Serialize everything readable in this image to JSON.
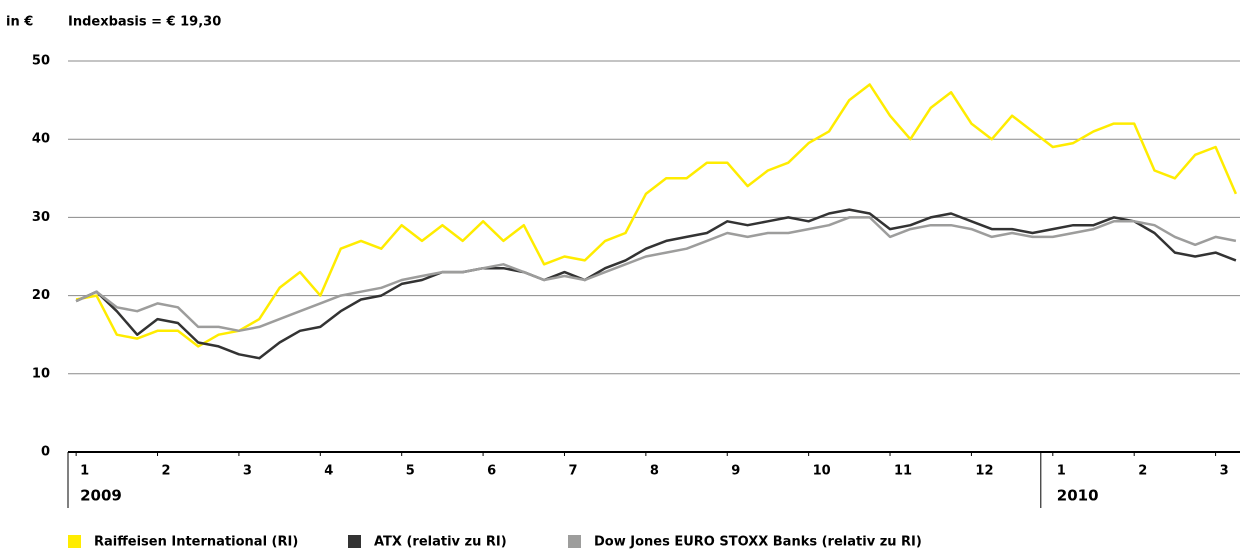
{
  "chart_data": {
    "type": "line",
    "unit_label": "in €",
    "subtitle": "Indexbasis = € 19,30",
    "x": [
      0,
      0.25,
      0.5,
      0.75,
      1,
      1.25,
      1.5,
      1.75,
      2,
      2.25,
      2.5,
      2.75,
      3,
      3.25,
      3.5,
      3.75,
      4,
      4.25,
      4.5,
      4.75,
      5,
      5.25,
      5.5,
      5.75,
      6,
      6.25,
      6.5,
      6.75,
      7,
      7.25,
      7.5,
      7.75,
      8,
      8.25,
      8.5,
      8.75,
      9,
      9.25,
      9.5,
      9.75,
      10,
      10.25,
      10.5,
      10.75,
      11,
      11.25,
      11.5,
      11.75,
      12,
      12.25,
      12.5,
      12.75,
      13,
      13.25,
      13.5,
      13.75,
      14,
      14.25
    ],
    "series": [
      {
        "name": "Raiffeisen International (RI)",
        "color": "#ffec00",
        "values": [
          19.5,
          20,
          15,
          14.5,
          15.5,
          15.5,
          13.5,
          15,
          15.5,
          17,
          21,
          23,
          20,
          26,
          27,
          26,
          29,
          27,
          29,
          27,
          29.5,
          27,
          29,
          24,
          25,
          24.5,
          27,
          28,
          33,
          35,
          35,
          37,
          37,
          34,
          36,
          37,
          39.5,
          41,
          45,
          47,
          43,
          40,
          44,
          46,
          42,
          40,
          43,
          41,
          39,
          39.5,
          41,
          42,
          42,
          36,
          35,
          38,
          39,
          33
        ]
      },
      {
        "name": "ATX (relativ zu RI)",
        "color": "#333333",
        "values": [
          19.3,
          20.5,
          18,
          15,
          17,
          16.5,
          14,
          13.5,
          12.5,
          12,
          14,
          15.5,
          16,
          18,
          19.5,
          20,
          21.5,
          22,
          23,
          23,
          23.5,
          23.5,
          23,
          22,
          23,
          22,
          23.5,
          24.5,
          26,
          27,
          27.5,
          28,
          29.5,
          29,
          29.5,
          30,
          29.5,
          30.5,
          31,
          30.5,
          28.5,
          29,
          30,
          30.5,
          29.5,
          28.5,
          28.5,
          28,
          28.5,
          29,
          29,
          30,
          29.5,
          28,
          25.5,
          25,
          25.5,
          24.5
        ]
      },
      {
        "name": "Dow Jones EURO STOXX Banks (relativ zu RI)",
        "color": "#9d9d9c",
        "values": [
          19.3,
          20.5,
          18.5,
          18,
          19,
          18.5,
          16,
          16,
          15.5,
          16,
          17,
          18,
          19,
          20,
          20.5,
          21,
          22,
          22.5,
          23,
          23,
          23.5,
          24,
          23,
          22,
          22.5,
          22,
          23,
          24,
          25,
          25.5,
          26,
          27,
          28,
          27.5,
          28,
          28,
          28.5,
          29,
          30,
          30,
          27.5,
          28.5,
          29,
          29,
          28.5,
          27.5,
          28,
          27.5,
          27.5,
          28,
          28.5,
          29.5,
          29.5,
          29,
          27.5,
          26.5,
          27.5,
          27
        ]
      }
    ],
    "xlim": [
      -0.1,
      14.3
    ],
    "xticks": [
      {
        "value": 0,
        "label": "1"
      },
      {
        "value": 1,
        "label": "2"
      },
      {
        "value": 2,
        "label": "3"
      },
      {
        "value": 3,
        "label": "4"
      },
      {
        "value": 4,
        "label": "5"
      },
      {
        "value": 5,
        "label": "6"
      },
      {
        "value": 6,
        "label": "7"
      },
      {
        "value": 7,
        "label": "8"
      },
      {
        "value": 8,
        "label": "9"
      },
      {
        "value": 9,
        "label": "10"
      },
      {
        "value": 10,
        "label": "11"
      },
      {
        "value": 11,
        "label": "12"
      },
      {
        "value": 12,
        "label": "1"
      },
      {
        "value": 13,
        "label": "2"
      },
      {
        "value": 14,
        "label": "3"
      }
    ],
    "years": [
      {
        "label": "2009",
        "x": 0
      },
      {
        "label": "2010",
        "x": 12
      }
    ],
    "ylim": [
      0,
      50
    ],
    "yticks": [
      0,
      10,
      20,
      30,
      40,
      50
    ],
    "grid": true
  }
}
